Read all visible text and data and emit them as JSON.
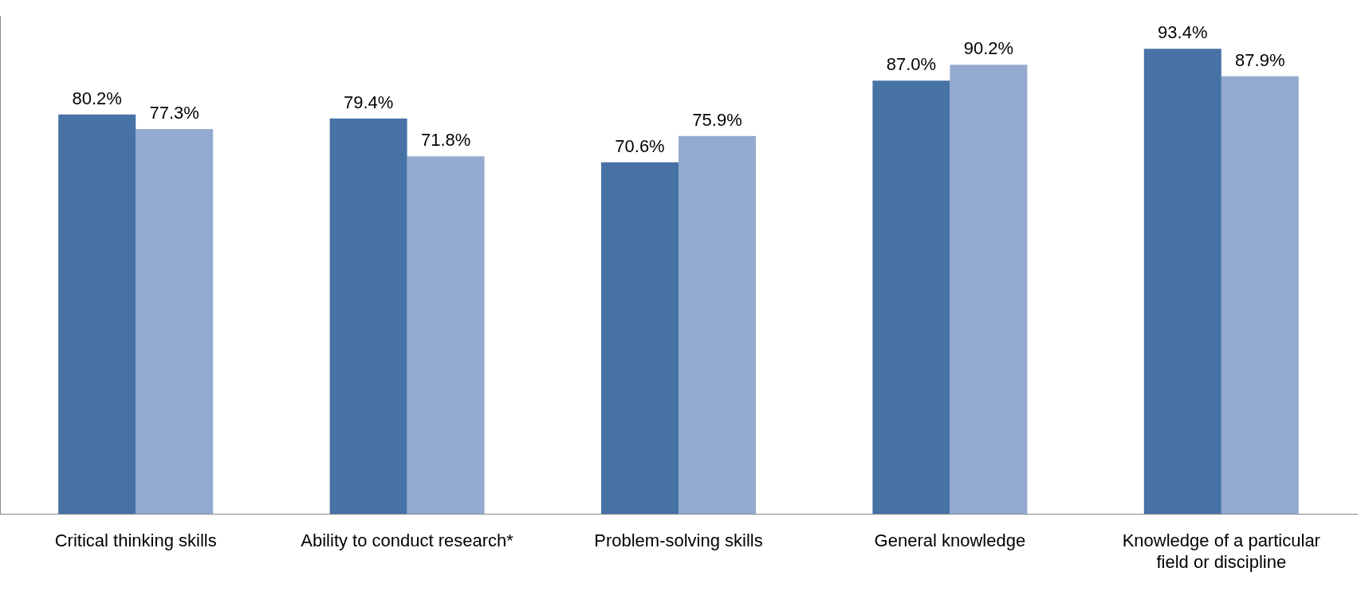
{
  "chart_data": {
    "type": "bar",
    "categories": [
      "Critical thinking skills",
      "Ability to conduct research*",
      "Problem-solving skills",
      "General knowledge",
      "Knowledge of a particular field or discipline"
    ],
    "series": [
      {
        "color": "#4672a6",
        "values": [
          80.2,
          79.4,
          70.6,
          87.0,
          93.4
        ],
        "value_labels": [
          "80.2%",
          "79.4%",
          "70.6%",
          "87.0%",
          "93.4%"
        ]
      },
      {
        "color": "#95aad0",
        "values": [
          77.3,
          71.8,
          75.9,
          90.2,
          87.9
        ],
        "value_labels": [
          "77.3%",
          "71.8%",
          "75.9%",
          "90.2%",
          "87.9%"
        ]
      }
    ],
    "grid": false,
    "legend": false,
    "tick_labels": "x"
  }
}
